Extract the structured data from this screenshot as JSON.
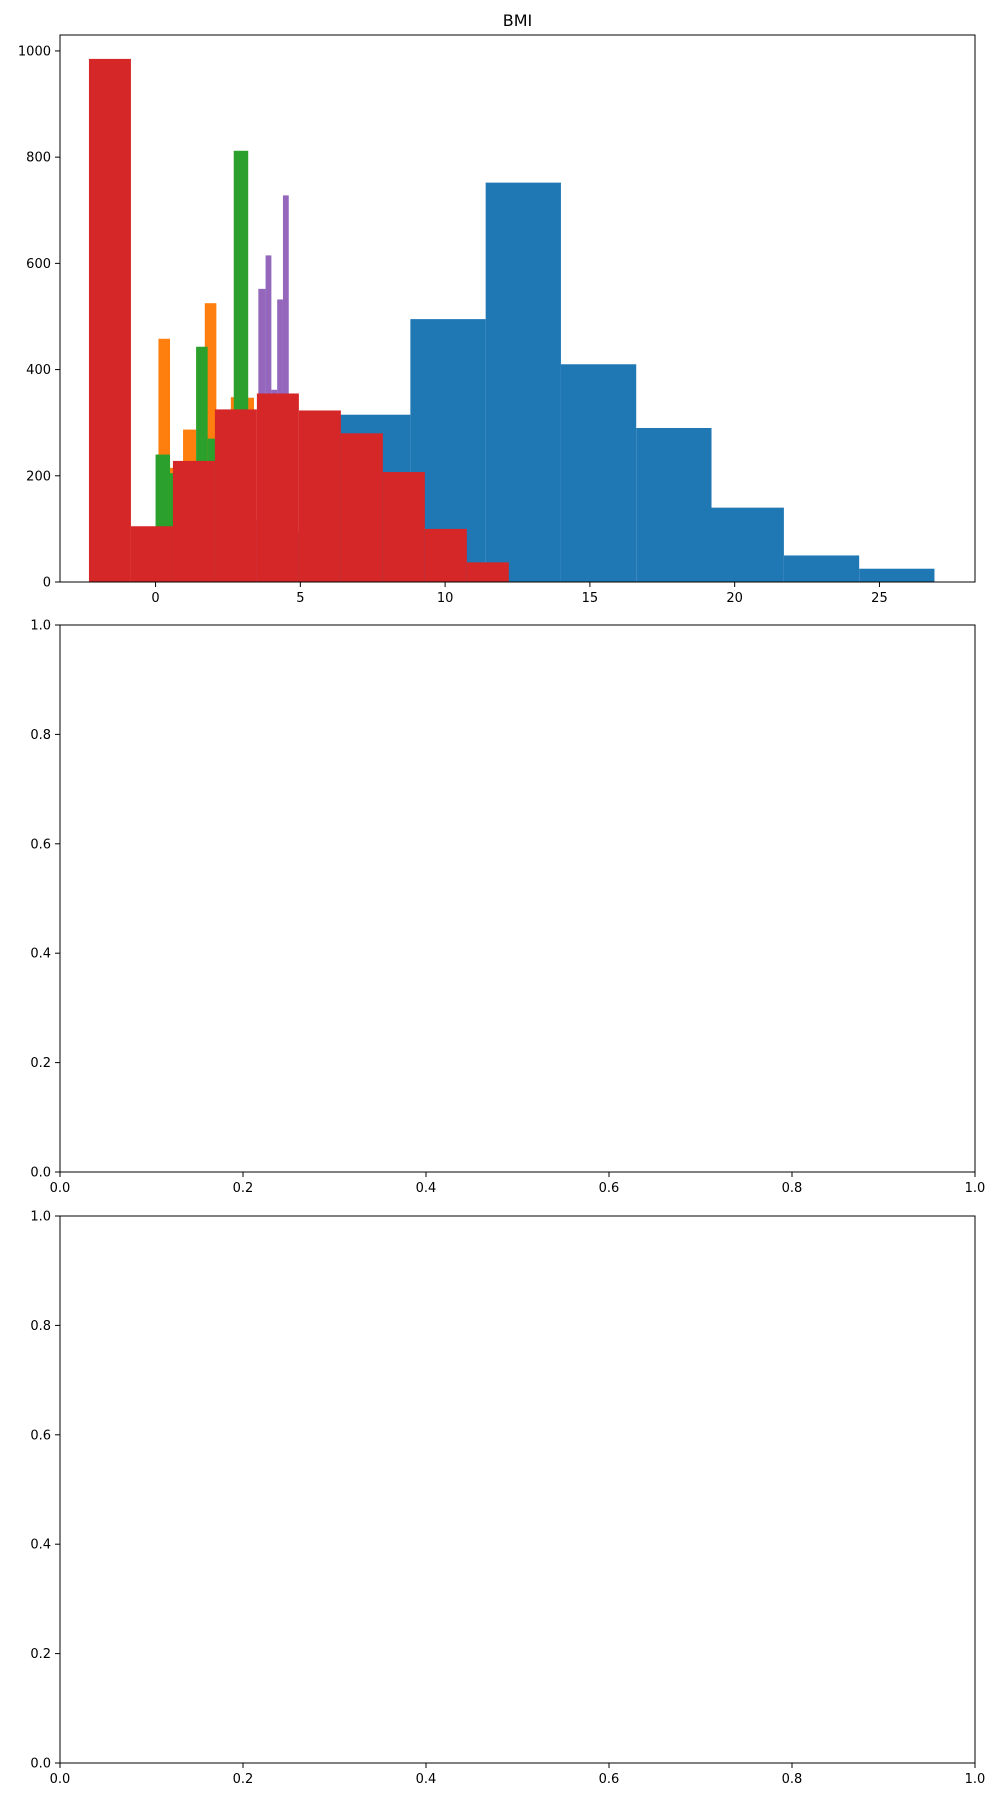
{
  "chart_data": [
    {
      "type": "histogram",
      "title": "BMI",
      "xlabel": "",
      "ylabel": "",
      "xlim": [
        -3.3,
        28.3
      ],
      "ylim": [
        0,
        1030
      ],
      "grid": false,
      "legend": "none",
      "xticks": [
        0,
        5,
        10,
        15,
        20,
        25
      ],
      "yticks": [
        0,
        200,
        400,
        600,
        800,
        1000
      ],
      "series": [
        {
          "color": "#1f77b4",
          "bins": [
            {
              "x0": 1.0,
              "x1": 3.6,
              "count": 5
            },
            {
              "x0": 3.6,
              "x1": 6.2,
              "count": 95
            },
            {
              "x0": 6.2,
              "x1": 8.8,
              "count": 315
            },
            {
              "x0": 8.8,
              "x1": 11.4,
              "count": 495
            },
            {
              "x0": 11.4,
              "x1": 14.0,
              "count": 752
            },
            {
              "x0": 14.0,
              "x1": 16.6,
              "count": 410
            },
            {
              "x0": 16.6,
              "x1": 19.2,
              "count": 290
            },
            {
              "x0": 19.2,
              "x1": 21.7,
              "count": 140
            },
            {
              "x0": 21.7,
              "x1": 24.3,
              "count": 50
            },
            {
              "x0": 24.3,
              "x1": 26.9,
              "count": 25
            }
          ]
        },
        {
          "color": "#ff7f0e",
          "bins": [
            {
              "x0": 0.1,
              "x1": 0.5,
              "count": 458
            },
            {
              "x0": 0.5,
              "x1": 0.95,
              "count": 215
            },
            {
              "x0": 0.95,
              "x1": 1.4,
              "count": 287
            },
            {
              "x0": 1.4,
              "x1": 1.7,
              "count": 190
            },
            {
              "x0": 1.7,
              "x1": 2.1,
              "count": 525
            },
            {
              "x0": 2.1,
              "x1": 2.6,
              "count": 120
            },
            {
              "x0": 2.6,
              "x1": 3.1,
              "count": 348
            },
            {
              "x0": 3.1,
              "x1": 3.4,
              "count": 347
            }
          ]
        },
        {
          "color": "#2ca02c",
          "bins": [
            {
              "x0": 0.0,
              "x1": 0.5,
              "count": 240
            },
            {
              "x0": 0.5,
              "x1": 1.4,
              "count": 205
            },
            {
              "x0": 1.4,
              "x1": 1.8,
              "count": 443
            },
            {
              "x0": 1.8,
              "x1": 2.7,
              "count": 270
            },
            {
              "x0": 2.7,
              "x1": 3.2,
              "count": 812
            }
          ]
        },
        {
          "color": "#9467bd",
          "bins": [
            {
              "x0": 3.1,
              "x1": 3.3,
              "count": 28
            },
            {
              "x0": 3.3,
              "x1": 3.55,
              "count": 115
            },
            {
              "x0": 3.55,
              "x1": 3.8,
              "count": 552
            },
            {
              "x0": 3.8,
              "x1": 4.0,
              "count": 615
            },
            {
              "x0": 4.0,
              "x1": 4.2,
              "count": 362
            },
            {
              "x0": 4.2,
              "x1": 4.4,
              "count": 532
            },
            {
              "x0": 4.4,
              "x1": 4.6,
              "count": 728
            }
          ]
        },
        {
          "color": "#d62728",
          "bins": [
            {
              "x0": -2.3,
              "x1": -0.85,
              "count": 985
            },
            {
              "x0": -0.85,
              "x1": 0.6,
              "count": 105
            },
            {
              "x0": 0.6,
              "x1": 2.05,
              "count": 228
            },
            {
              "x0": 2.05,
              "x1": 3.5,
              "count": 325
            },
            {
              "x0": 3.5,
              "x1": 4.95,
              "count": 355
            },
            {
              "x0": 4.95,
              "x1": 6.4,
              "count": 323
            },
            {
              "x0": 6.4,
              "x1": 7.85,
              "count": 280
            },
            {
              "x0": 7.85,
              "x1": 9.3,
              "count": 207
            },
            {
              "x0": 9.3,
              "x1": 10.75,
              "count": 100
            },
            {
              "x0": 10.75,
              "x1": 12.2,
              "count": 37
            }
          ]
        }
      ]
    },
    {
      "type": "empty",
      "xlim": [
        0,
        1
      ],
      "ylim": [
        0,
        1
      ],
      "xticks": [
        "0.0",
        "0.2",
        "0.4",
        "0.6",
        "0.8",
        "1.0"
      ],
      "yticks": [
        "0.0",
        "0.2",
        "0.4",
        "0.6",
        "0.8",
        "1.0"
      ]
    },
    {
      "type": "empty",
      "xlim": [
        0,
        1
      ],
      "ylim": [
        0,
        1
      ],
      "xticks": [
        "0.0",
        "0.2",
        "0.4",
        "0.6",
        "0.8",
        "1.0"
      ],
      "yticks": [
        "0.0",
        "0.2",
        "0.4",
        "0.6",
        "0.8",
        "1.0"
      ]
    }
  ]
}
